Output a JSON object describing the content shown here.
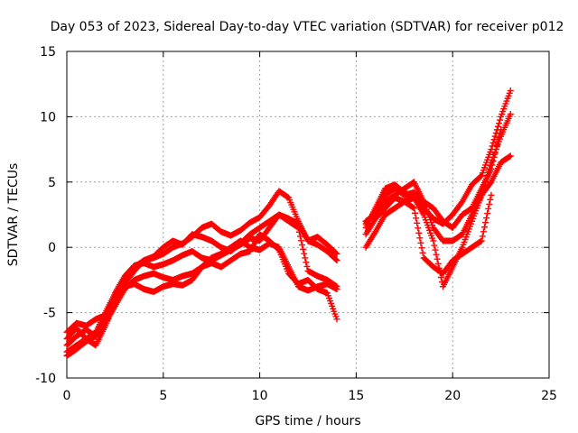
{
  "chart_data": {
    "type": "scatter",
    "title": "Day 053 of 2023, Sidereal Day-to-day VTEC variation (SDTVAR) for receiver p012",
    "xlabel": "GPS time / hours",
    "ylabel": "SDTVAR / TECUs",
    "xlim": [
      0,
      25
    ],
    "ylim": [
      -10,
      15
    ],
    "xticks": [
      0,
      5,
      10,
      15,
      20,
      25
    ],
    "yticks": [
      -10,
      -5,
      0,
      5,
      10,
      15
    ],
    "grid": true,
    "marker": "plus",
    "color": "#ff0000",
    "series": [
      {
        "x": [
          0,
          0.5,
          1,
          1.5,
          2,
          2.5,
          3,
          3.5,
          4,
          4.5,
          5,
          5.5,
          6,
          6.5,
          7,
          7.5,
          8,
          8.5,
          9,
          9.5,
          10,
          10.5,
          11,
          11.5,
          12,
          12.5,
          13,
          13.5,
          14
        ],
        "y": [
          -8.3,
          -7.8,
          -7.2,
          -6.8,
          -5.5,
          -4.0,
          -2.8,
          -1.8,
          -1.0,
          -0.8,
          -0.5,
          0.0,
          0.3,
          0.8,
          1.5,
          1.8,
          1.2,
          0.9,
          1.3,
          1.9,
          2.3,
          3.2,
          4.3,
          3.8,
          2.0,
          0.5,
          0.2,
          -0.3,
          -1.0
        ]
      },
      {
        "x": [
          0,
          0.5,
          1,
          1.5,
          2,
          2.5,
          3,
          3.5,
          4,
          4.5,
          5,
          5.5,
          6,
          6.5,
          7,
          7.5,
          8,
          8.5,
          9,
          9.5,
          10,
          10.5,
          11,
          11.5,
          12,
          12.5,
          13,
          13.5,
          14
        ],
        "y": [
          -8.0,
          -7.5,
          -7.0,
          -6.5,
          -5.0,
          -3.5,
          -2.2,
          -1.4,
          -1.2,
          -1.5,
          -1.3,
          -1.0,
          -0.6,
          -0.3,
          -0.8,
          -1.0,
          -0.6,
          -0.2,
          0.2,
          0.7,
          0.5,
          1.5,
          2.5,
          2.0,
          1.5,
          -1.8,
          -2.2,
          -2.5,
          -3.0
        ]
      },
      {
        "x": [
          0,
          0.5,
          1,
          1.5,
          2,
          2.5,
          3,
          3.5,
          4,
          4.5,
          5,
          5.5,
          6,
          6.5,
          7,
          7.5,
          8,
          8.5,
          9,
          9.5,
          10,
          10.5,
          11,
          11.5,
          12,
          12.5,
          13,
          13.5,
          14
        ],
        "y": [
          -7.5,
          -6.8,
          -6.3,
          -6.8,
          -5.8,
          -4.5,
          -3.2,
          -2.5,
          -2.2,
          -2.0,
          -2.3,
          -2.5,
          -2.2,
          -2.0,
          -1.5,
          -1.2,
          -1.5,
          -1.0,
          -0.5,
          -0.3,
          1.0,
          0.5,
          -0.2,
          -2.0,
          -2.8,
          -2.5,
          -3.2,
          -3.5,
          -5.5
        ]
      },
      {
        "x": [
          0,
          0.5,
          1,
          1.5,
          2,
          2.5,
          3,
          3.5,
          4,
          4.5,
          5,
          5.5,
          6,
          6.5,
          7,
          7.5,
          8,
          8.5,
          9,
          9.5,
          10,
          10.5,
          11,
          11.5,
          12,
          12.5,
          13,
          13.5,
          14
        ],
        "y": [
          -7.0,
          -6.2,
          -7.0,
          -7.5,
          -6.0,
          -4.2,
          -3.0,
          -2.8,
          -3.2,
          -3.4,
          -3.0,
          -2.8,
          -2.9,
          -2.5,
          -1.5,
          -0.8,
          -0.5,
          0.0,
          0.5,
          0.0,
          -0.2,
          0.3,
          0.0,
          -1.5,
          -3.0,
          -3.3,
          -3.0,
          -2.8,
          -3.2
        ]
      },
      {
        "x": [
          0,
          0.5,
          1,
          1.5,
          2,
          2.5,
          3,
          3.5,
          4,
          4.5,
          5,
          5.5,
          6,
          6.5,
          7,
          7.5,
          8,
          8.5,
          9,
          9.5,
          10,
          10.5,
          11,
          11.5,
          12,
          12.5,
          13,
          13.5,
          14
        ],
        "y": [
          -6.5,
          -5.8,
          -6.0,
          -5.5,
          -5.2,
          -3.8,
          -2.5,
          -1.5,
          -1.0,
          -0.7,
          0.0,
          0.5,
          0.2,
          1.0,
          0.8,
          0.5,
          0.0,
          -0.3,
          0.3,
          1.0,
          1.5,
          2.0,
          2.5,
          2.2,
          1.8,
          0.5,
          0.8,
          0.2,
          -0.5
        ]
      },
      {
        "x": [
          15.5,
          16,
          16.5,
          17,
          17.5,
          18,
          18.5,
          19,
          19.5,
          20,
          20.5,
          21,
          21.5,
          22,
          22.5,
          23
        ],
        "y": [
          1.5,
          3.0,
          4.5,
          4.8,
          4.2,
          3.8,
          3.0,
          2.2,
          1.8,
          2.5,
          3.5,
          4.8,
          5.5,
          7.5,
          10.0,
          12.0
        ]
      },
      {
        "x": [
          15.5,
          16,
          16.5,
          17,
          17.5,
          18,
          18.5,
          19,
          19.5,
          20,
          20.5,
          21,
          21.5,
          22,
          22.5,
          23
        ],
        "y": [
          2.0,
          2.5,
          3.5,
          4.0,
          4.5,
          5.0,
          3.5,
          1.5,
          0.5,
          0.5,
          1.0,
          2.5,
          4.0,
          6.5,
          8.5,
          10.2
        ]
      },
      {
        "x": [
          15.5,
          16,
          16.5,
          17,
          17.5,
          18,
          18.5,
          19,
          19.5,
          20,
          20.5,
          21,
          21.5,
          22,
          22.5,
          23
        ],
        "y": [
          0.0,
          1.2,
          2.5,
          3.0,
          3.5,
          3.8,
          2.5,
          0.5,
          -3.0,
          -1.5,
          0.0,
          2.0,
          4.0,
          5.0,
          6.5,
          7.0
        ]
      },
      {
        "x": [
          15.5,
          16,
          16.5,
          17,
          17.5,
          18,
          18.5,
          19,
          19.5,
          20,
          20.5,
          21,
          21.5,
          22
        ],
        "y": [
          1.0,
          2.2,
          3.0,
          3.8,
          3.5,
          3.0,
          -0.8,
          -1.5,
          -2.0,
          -1.0,
          -0.5,
          0.0,
          0.5,
          4.0
        ]
      },
      {
        "x": [
          15.5,
          16,
          16.5,
          17,
          17.5,
          18,
          18.5,
          19,
          19.5,
          20,
          20.5,
          21,
          21.5,
          22,
          22.5
        ],
        "y": [
          1.8,
          2.8,
          4.0,
          4.5,
          4.0,
          4.2,
          3.5,
          3.0,
          2.0,
          1.5,
          2.5,
          3.0,
          4.5,
          6.0,
          9.0
        ]
      }
    ]
  }
}
